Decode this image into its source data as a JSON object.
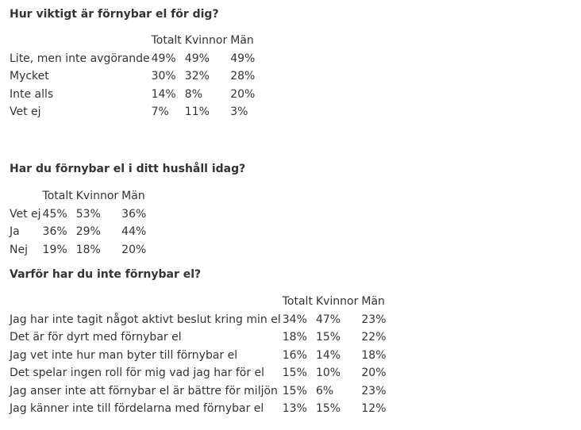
{
  "section1": {
    "title": "Hur viktigt är förnybar el för dig?",
    "columns": [
      "",
      "Totalt",
      "Kvinnor",
      "Män"
    ],
    "rows": [
      [
        "Lite, men inte avgörande",
        "49%",
        "49%",
        "49%"
      ],
      [
        "Mycket",
        "30%",
        "32%",
        "28%"
      ],
      [
        "Inte alls",
        "14%",
        "8%",
        "20%"
      ],
      [
        "Vet ej",
        "7%",
        "11%",
        "3%"
      ]
    ]
  },
  "section2": {
    "title": "Har du förnybar el i ditt hushåll idag?",
    "columns": [
      "",
      "Totalt",
      "Kvinnor",
      "Män"
    ],
    "rows": [
      [
        "Vet ej",
        "45%",
        "53%",
        "36%"
      ],
      [
        "Ja",
        "36%",
        "29%",
        "44%"
      ],
      [
        "Nej",
        "19%",
        "18%",
        "20%"
      ]
    ]
  },
  "section3": {
    "title": "Varför har du inte förnybar el?",
    "columns": [
      "",
      "Totalt",
      "Kvinnor",
      "Män"
    ],
    "rows": [
      [
        "Jag har inte tagit något aktivt beslut kring min el",
        "34%",
        "47%",
        "23%"
      ],
      [
        "Det är för dyrt med förnybar el",
        "18%",
        "15%",
        "22%"
      ],
      [
        "Jag vet inte hur man byter till förnybar el",
        "16%",
        "14%",
        "18%"
      ],
      [
        "Det spelar ingen roll för mig vad jag har för el",
        "15%",
        "10%",
        "20%"
      ],
      [
        "Jag anser inte att förnybar el är bättre för miljön",
        "15%",
        "6%",
        "23%"
      ],
      [
        "Jag känner inte till fördelarna med förnybar el",
        "13%",
        "15%",
        "12%"
      ]
    ]
  }
}
